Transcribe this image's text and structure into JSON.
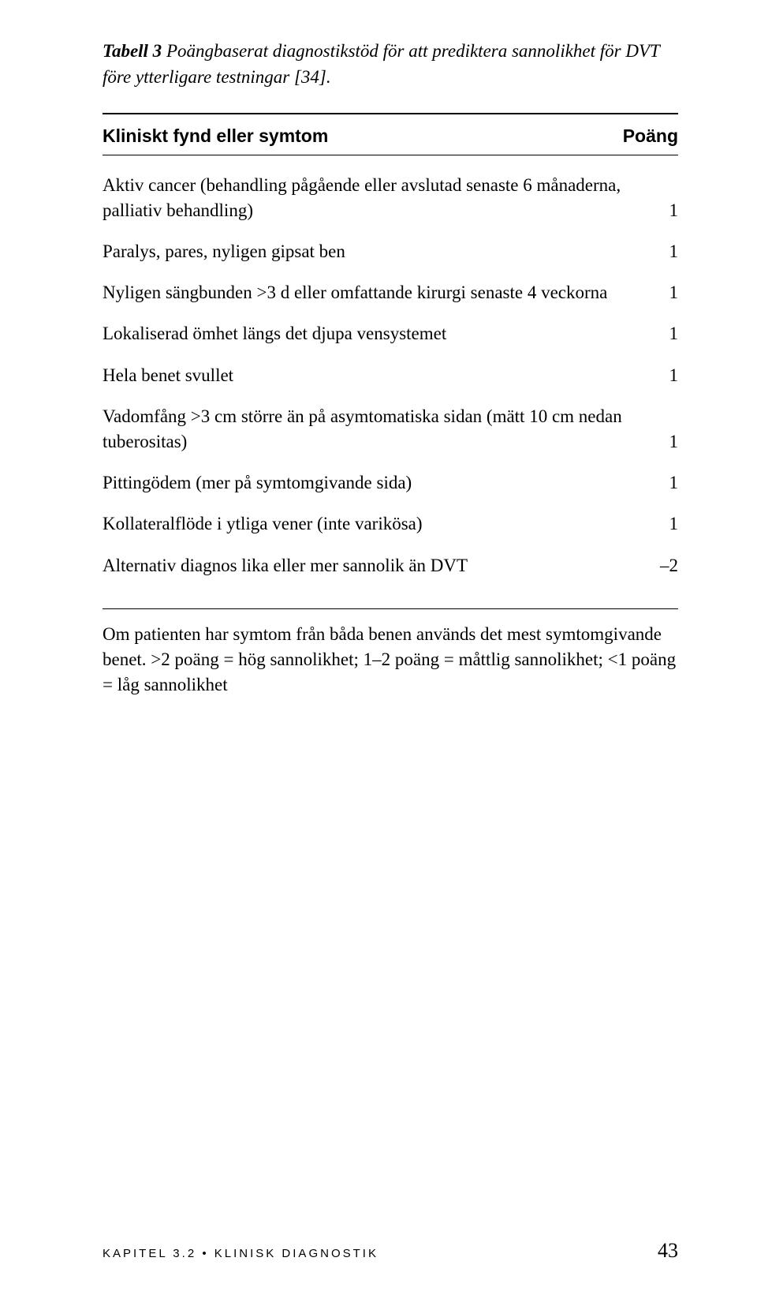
{
  "caption": {
    "label": "Tabell 3",
    "text": " Poängbaserat diagnostikstöd för att prediktera sannolikhet för DVT före ytterligare testningar [34]."
  },
  "table": {
    "header": {
      "left": "Kliniskt fynd eller symtom",
      "right": "Poäng"
    },
    "rows": [
      {
        "label": "Aktiv cancer (behandling pågående eller avslutad senaste 6 månaderna, palliativ behandling)",
        "score": "1"
      },
      {
        "label": "Paralys, pares, nyligen gipsat ben",
        "score": "1"
      },
      {
        "label": "Nyligen sängbunden >3 d eller omfattande kirurgi senaste 4 veckorna",
        "score": "1"
      },
      {
        "label": "Lokaliserad ömhet längs det djupa vensystemet",
        "score": "1"
      },
      {
        "label": "Hela benet svullet",
        "score": "1"
      },
      {
        "label": "Vadomfång >3 cm större än på asymtomatiska sidan (mätt 10 cm nedan tuberositas)",
        "score": "1"
      },
      {
        "label": "Pittingödem (mer på symtomgivande sida)",
        "score": "1"
      },
      {
        "label": "Kollateralflöde i ytliga vener (inte varikösa)",
        "score": "1"
      },
      {
        "label": "Alternativ diagnos lika eller mer sannolik än DVT",
        "score": "–2"
      }
    ],
    "footnote": "Om patienten har symtom från båda benen används det mest symtomgivande benet. >2 poäng = hög sannolikhet; 1–2 poäng = måttlig sannolikhet; <1 poäng = låg sannolikhet"
  },
  "footer": {
    "left": "KAPITEL 3.2 • KLINISK DIAGNOSTIK",
    "page": "43"
  }
}
